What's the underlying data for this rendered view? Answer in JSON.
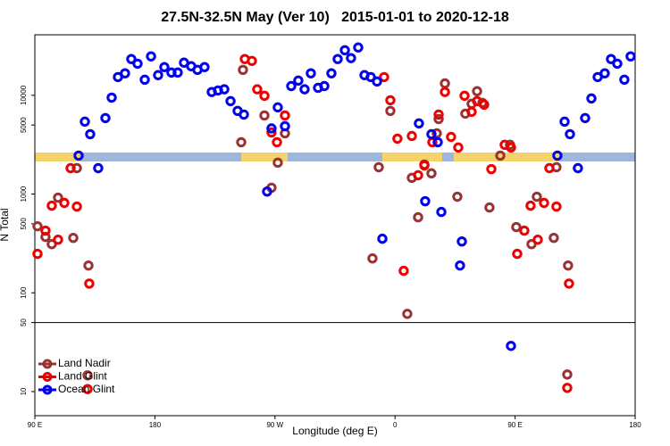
{
  "chart_data": {
    "type": "scatter",
    "title": "27.5N-32.5N May (Ver 10)   2015-01-01 to 2020-12-18",
    "x_label": "Longitude (deg E)",
    "y_label": "N Total",
    "xlim": [
      90,
      540
    ],
    "xticks": [
      {
        "value": 90,
        "label": "90 E"
      },
      180,
      {
        "value": 270,
        "label": "90 W"
      },
      {
        "value": 360,
        "label": "0"
      },
      {
        "value": 450,
        "label": "90 E"
      },
      {
        "value": 540,
        "label": "180"
      }
    ],
    "ylim": [
      5.7,
      41000
    ],
    "yticks": [
      10,
      50,
      100,
      500,
      1000,
      5000,
      10000
    ],
    "log_y": true,
    "reference_line": 50,
    "legend_position": "lower left",
    "series": [
      {
        "name": "Land Nadir",
        "color": "#993333",
        "x": [
          92.0,
          98.0,
          102.7,
          107.4,
          118.8,
          121.5,
          130.2,
          129.5,
          246.0,
          244.7,
          267.4,
          272.1,
          277.5,
          262.1,
          343.1,
          356.5,
          347.8,
          372.6,
          377.3,
          382.0,
          387.3,
          391.3,
          392.7,
          397.4,
          406.7,
          412.7,
          417.4,
          421.5,
          425.5,
          430.8,
          438.9,
          446.2,
          450.9,
          462.3,
          466.3,
          479.0,
          481.0,
          489.7,
          489.1,
          369.2
        ],
        "values": [
          472,
          368,
          311,
          920,
          360,
          1830,
          189,
          14.6,
          18100,
          3350,
          1160,
          2080,
          4120,
          6250,
          223,
          6950,
          1870,
          1460,
          582,
          1990,
          1620,
          4120,
          5750,
          13200,
          940,
          6520,
          8200,
          11000,
          8380,
          731,
          2450,
          3150,
          463,
          311,
          940,
          360,
          1870,
          189,
          14.9,
          61.2
        ]
      },
      {
        "name": "Land Glint",
        "color": "#ee0000",
        "x": [
          92.0,
          98.0,
          102.7,
          107.4,
          112.1,
          116.8,
          121.5,
          130.8,
          129.5,
          247.4,
          252.7,
          256.7,
          262.1,
          267.4,
          271.5,
          277.5,
          351.8,
          356.5,
          361.8,
          366.5,
          372.6,
          377.3,
          382.0,
          388.0,
          392.7,
          397.4,
          402.0,
          407.4,
          412.1,
          417.4,
          421.5,
          426.8,
          432.2,
          442.2,
          446.9,
          451.6,
          456.9,
          461.6,
          467.0,
          471.7,
          475.7,
          481.0,
          490.4,
          489.1
        ],
        "values": [
          248,
          426,
          762,
          345,
          813,
          1830,
          747,
          124,
          10.6,
          23300,
          22300,
          11500,
          9890,
          4210,
          3350,
          6250,
          15300,
          8910,
          3640,
          167,
          3870,
          1550,
          1950,
          3350,
          6380,
          10800,
          3790,
          2960,
          9890,
          6800,
          8730,
          8040,
          1790,
          3150,
          2960,
          248,
          426,
          762,
          345,
          813,
          1830,
          747,
          124,
          10.9
        ]
      },
      {
        "name": "Ocean Glint",
        "color": "#0000ee",
        "x": [
          122.8,
          127.5,
          131.5,
          137.5,
          142.9,
          147.6,
          152.3,
          157.6,
          162.3,
          167.0,
          172.4,
          177.1,
          182.4,
          187.1,
          192.4,
          197.1,
          201.8,
          207.2,
          211.9,
          217.2,
          222.6,
          227.3,
          232.0,
          236.7,
          242.0,
          246.7,
          264.1,
          267.4,
          272.1,
          277.5,
          282.2,
          287.5,
          292.2,
          296.9,
          302.3,
          307.0,
          312.3,
          317.0,
          322.4,
          327.0,
          332.4,
          337.1,
          341.8,
          346.5,
          350.5,
          377.9,
          382.6,
          387.3,
          392.0,
          394.7,
          408.7,
          410.1,
          446.9,
          481.7,
          487.1,
          491.1,
          497.1,
          502.5,
          507.2,
          511.9,
          517.2,
          521.9,
          526.6,
          531.9,
          536.6
        ],
        "values": [
          2450,
          5410,
          4040,
          1830,
          5880,
          9480,
          15300,
          16700,
          23300,
          20900,
          14400,
          24800,
          16000,
          19300,
          17000,
          17000,
          21400,
          19700,
          18100,
          19300,
          10800,
          11200,
          11500,
          8730,
          6950,
          6380,
          1060,
          4620,
          7550,
          4870,
          12400,
          14100,
          11500,
          16700,
          11900,
          12400,
          16700,
          23300,
          28600,
          23800,
          30500,
          16000,
          15300,
          13800,
          353,
          5190,
          847,
          4040,
          3350,
          659,
          189,
          331,
          29.0,
          2450,
          5410,
          4040,
          1830,
          5880,
          9290,
          15300,
          16700,
          23300,
          20900,
          14400,
          24800
        ]
      }
    ]
  }
}
